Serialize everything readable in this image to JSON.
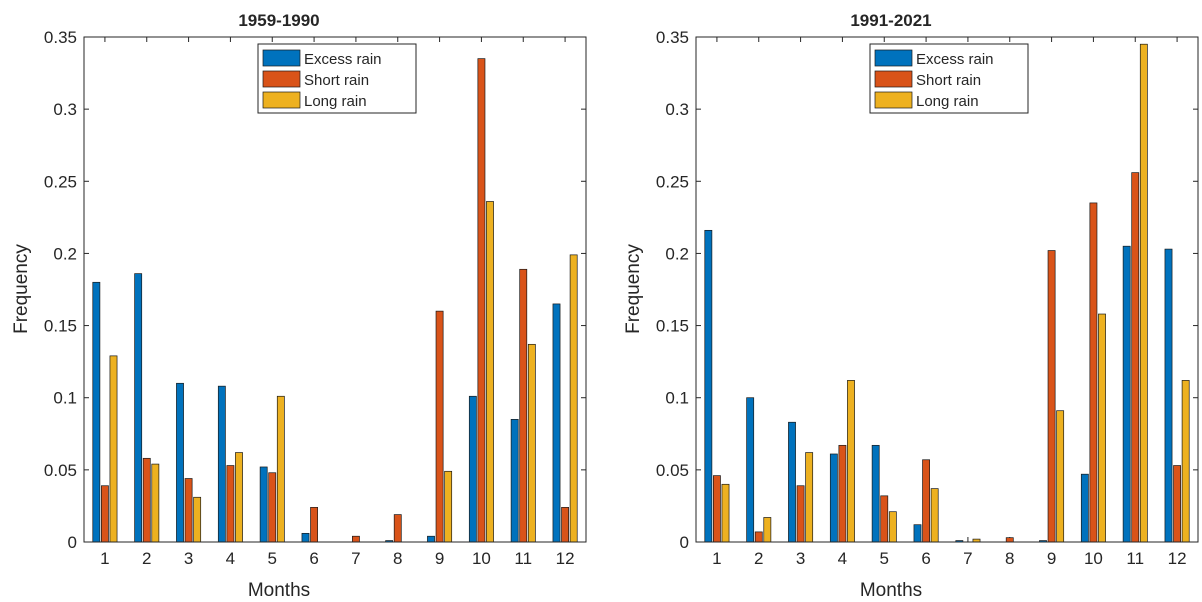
{
  "chart_data": [
    {
      "type": "bar",
      "title": "1959-1990",
      "xlabel": "Months",
      "ylabel": "Frequency",
      "ylim": [
        0,
        0.35
      ],
      "yticks": [
        "0",
        "0.05",
        "0.1",
        "0.15",
        "0.2",
        "0.25",
        "0.3",
        "0.35"
      ],
      "categories": [
        "1",
        "2",
        "3",
        "4",
        "5",
        "6",
        "7",
        "8",
        "9",
        "10",
        "11",
        "12"
      ],
      "legend_position": "top-center",
      "series": [
        {
          "name": "Excess rain",
          "color": "#0072BD",
          "values": [
            0.18,
            0.186,
            0.11,
            0.108,
            0.052,
            0.006,
            0.0,
            0.001,
            0.004,
            0.101,
            0.085,
            0.165
          ]
        },
        {
          "name": "Short rain",
          "color": "#D95319",
          "values": [
            0.039,
            0.058,
            0.044,
            0.053,
            0.048,
            0.024,
            0.004,
            0.019,
            0.16,
            0.335,
            0.189,
            0.024
          ]
        },
        {
          "name": "Long rain",
          "color": "#EDB120",
          "values": [
            0.129,
            0.054,
            0.031,
            0.062,
            0.101,
            0.0,
            0.0,
            0.0,
            0.049,
            0.236,
            0.137,
            0.199
          ]
        }
      ]
    },
    {
      "type": "bar",
      "title": "1991-2021",
      "xlabel": "Months",
      "ylabel": "Frequency",
      "ylim": [
        0,
        0.35
      ],
      "yticks": [
        "0",
        "0.05",
        "0.1",
        "0.15",
        "0.2",
        "0.25",
        "0.3",
        "0.35"
      ],
      "categories": [
        "1",
        "2",
        "3",
        "4",
        "5",
        "6",
        "7",
        "8",
        "9",
        "10",
        "11",
        "12"
      ],
      "legend_position": "top-center",
      "series": [
        {
          "name": "Excess rain",
          "color": "#0072BD",
          "values": [
            0.216,
            0.1,
            0.083,
            0.061,
            0.067,
            0.012,
            0.001,
            0.0,
            0.001,
            0.047,
            0.205,
            0.203
          ]
        },
        {
          "name": "Short rain",
          "color": "#D95319",
          "values": [
            0.046,
            0.007,
            0.039,
            0.067,
            0.032,
            0.057,
            0.0,
            0.003,
            0.202,
            0.235,
            0.256,
            0.053
          ]
        },
        {
          "name": "Long rain",
          "color": "#EDB120",
          "values": [
            0.04,
            0.017,
            0.062,
            0.112,
            0.021,
            0.037,
            0.002,
            0.0,
            0.091,
            0.158,
            0.345,
            0.112
          ]
        }
      ]
    }
  ]
}
